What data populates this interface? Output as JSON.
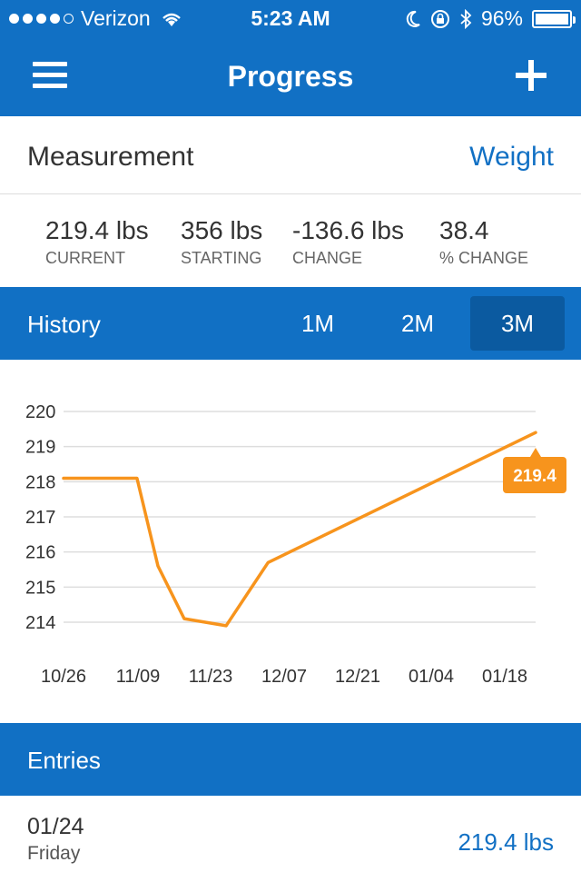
{
  "status_bar": {
    "carrier": "Verizon",
    "time": "5:23 AM",
    "battery": "96%"
  },
  "nav": {
    "title": "Progress",
    "menu_icon": "hamburger-menu-icon",
    "add_icon": "plus-icon"
  },
  "measurement": {
    "label": "Measurement",
    "value": "Weight"
  },
  "stats": [
    {
      "value": "219.4 lbs",
      "caption": "CURRENT"
    },
    {
      "value": "356 lbs",
      "caption": "STARTING"
    },
    {
      "value": "-136.6 lbs",
      "caption": "CHANGE"
    },
    {
      "value": "38.4",
      "caption": "% CHANGE"
    }
  ],
  "history": {
    "label": "History",
    "ranges": [
      "1M",
      "2M",
      "3M"
    ],
    "selected": "3M"
  },
  "chart_data": {
    "type": "line",
    "x": [
      "10/26",
      "11/09",
      "11/13",
      "11/18",
      "11/26",
      "12/04",
      "01/24"
    ],
    "values": [
      218.1,
      218.1,
      215.6,
      214.1,
      213.9,
      215.7,
      219.4
    ],
    "categories": [
      "10/26",
      "11/09",
      "11/23",
      "12/07",
      "12/21",
      "01/04",
      "01/18"
    ],
    "y_ticks": [
      220,
      219,
      218,
      217,
      216,
      215,
      214
    ],
    "ylim": [
      214,
      220
    ],
    "grid": true,
    "latest_label": "219.4",
    "line_color": "#f7941d",
    "title": "",
    "xlabel": "",
    "ylabel": ""
  },
  "entries": {
    "label": "Entries",
    "items": [
      {
        "date": "01/24",
        "day": "Friday",
        "value": "219.4 lbs"
      }
    ]
  },
  "colors": {
    "primary": "#1170c4",
    "primary_dark": "#0b5aa0",
    "accent": "#f7941d"
  }
}
